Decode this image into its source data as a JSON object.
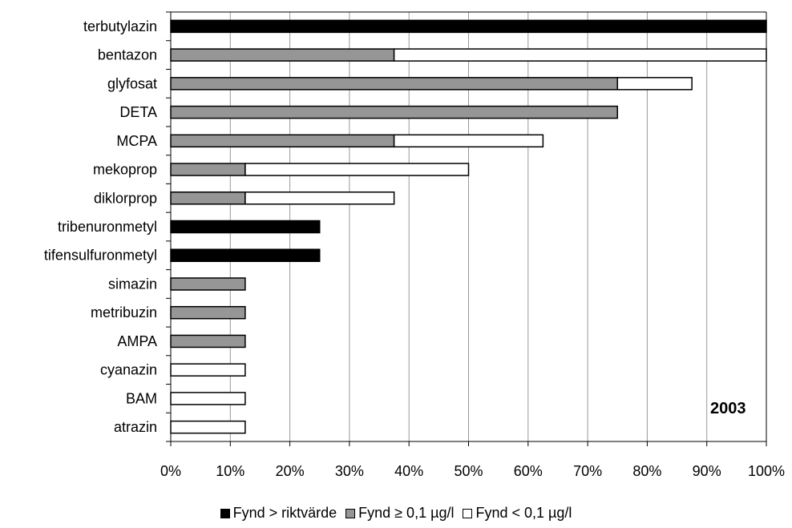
{
  "chart_data": {
    "type": "bar",
    "orientation": "horizontal",
    "stacked": true,
    "categories": [
      "terbutylazin",
      "bentazon",
      "glyfosat",
      "DETA",
      "MCPA",
      "mekoprop",
      "diklorprop",
      "tribenuronmetyl",
      "tifensulfuronmetyl",
      "simazin",
      "metribuzin",
      "AMPA",
      "cyanazin",
      "BAM",
      "atrazin"
    ],
    "series": [
      {
        "name": "Fynd > riktvärde",
        "color": "#000000",
        "values": [
          100,
          0,
          0,
          0,
          0,
          0,
          0,
          25,
          25,
          0,
          0,
          0,
          0,
          0,
          0
        ]
      },
      {
        "name": "Fynd ≥ 0,1  µg/l",
        "color": "#969696",
        "values": [
          0,
          37.5,
          75,
          75,
          37.5,
          12.5,
          12.5,
          0,
          0,
          12.5,
          12.5,
          12.5,
          0,
          0,
          0
        ]
      },
      {
        "name": "Fynd < 0,1 µg/l",
        "color": "#ffffff",
        "values": [
          0,
          62.5,
          12.5,
          0,
          25,
          37.5,
          25,
          0,
          0,
          0,
          0,
          0,
          12.5,
          12.5,
          12.5
        ]
      }
    ],
    "xlim": [
      0,
      100
    ],
    "xticks": [
      "0%",
      "10%",
      "20%",
      "30%",
      "40%",
      "50%",
      "60%",
      "70%",
      "80%",
      "90%",
      "100%"
    ],
    "grid": "vertical",
    "annotation": "2003",
    "legend_position": "bottom"
  }
}
